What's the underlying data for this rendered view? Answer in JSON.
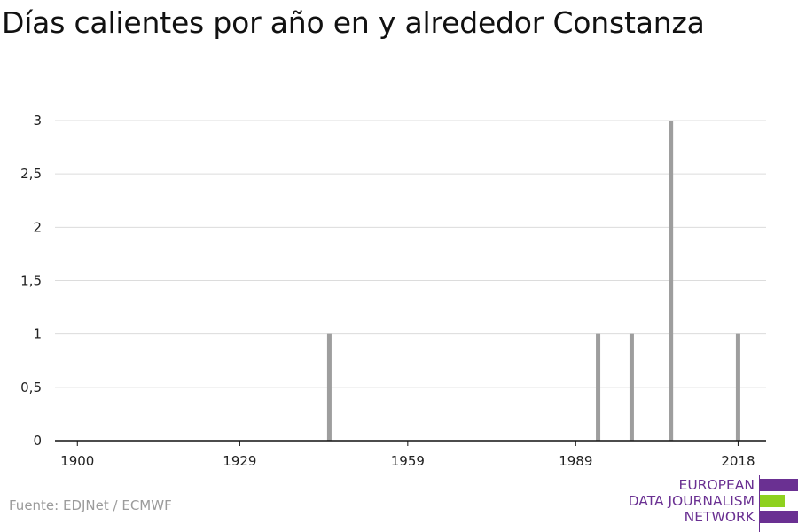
{
  "title": "Días calientes por año en y alrededor Constanza",
  "source": "Fuente: EDJNet / ECMWF",
  "logo": {
    "line1": "EUROPEAN",
    "line2": "DATA JOURNALISM",
    "line3": "NETWORK",
    "colors": {
      "purple": "#6a3092",
      "green": "#8fd11f"
    }
  },
  "chart_data": {
    "type": "bar",
    "title": "Días calientes por año en y alrededor Constanza",
    "xlabel": "",
    "ylabel": "",
    "xlim": [
      1896,
      2023
    ],
    "ylim": [
      0,
      3
    ],
    "x_ticks": [
      1900,
      1929,
      1959,
      1989,
      2018
    ],
    "x_tick_labels": [
      "1900",
      "1929",
      "1959",
      "1989",
      "2018"
    ],
    "y_ticks": [
      0,
      0.5,
      1,
      1.5,
      2,
      2.5,
      3
    ],
    "y_tick_labels": [
      "0",
      "0,5",
      "1",
      "1,5",
      "2",
      "2,5",
      "3"
    ],
    "grid": true,
    "bar_color": "#9e9e9e",
    "bars": [
      {
        "x": 1945,
        "value": 1
      },
      {
        "x": 1993,
        "value": 1
      },
      {
        "x": 1999,
        "value": 1
      },
      {
        "x": 2006,
        "value": 3
      },
      {
        "x": 2018,
        "value": 1
      }
    ]
  }
}
